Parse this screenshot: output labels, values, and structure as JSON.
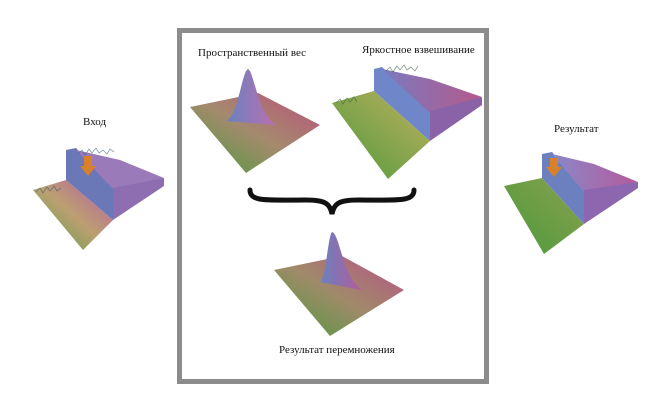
{
  "labels": {
    "input": "Вход",
    "spatial_weight": "Пространственный вес",
    "brightness_weight": "Яркостное взвешивание",
    "result": "Результат",
    "product": "Результат перемножения"
  }
}
